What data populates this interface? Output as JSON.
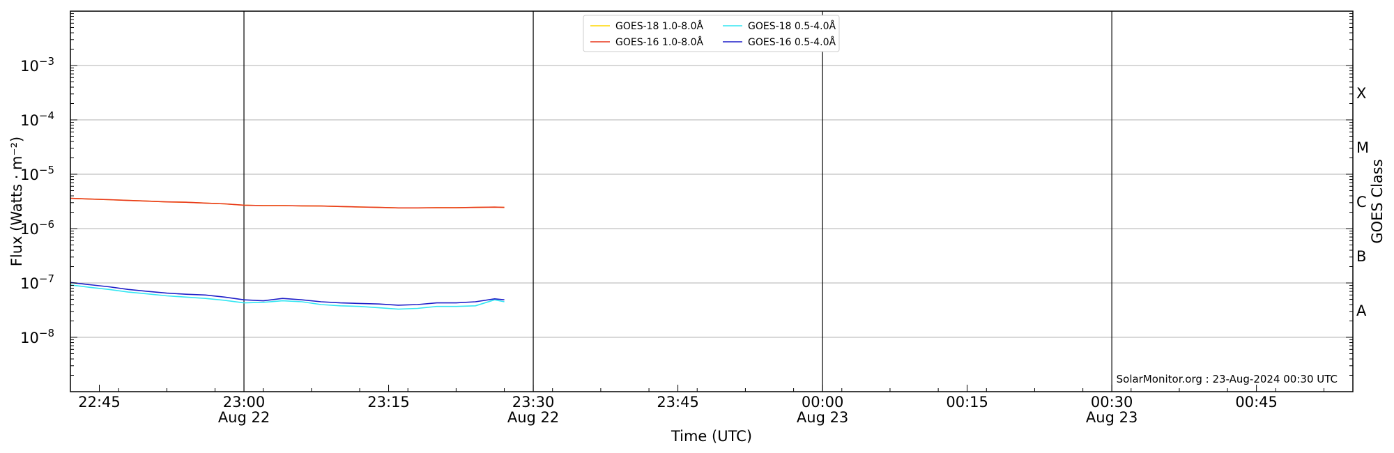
{
  "chart_data": {
    "type": "line",
    "xlabel": "Time (UTC)",
    "ylabel": "Flux (Watts · m⁻²)",
    "y2label": "GOES Class",
    "y_scale": "log",
    "ylim": [
      1e-09,
      0.01
    ],
    "xlim": [
      "2024-08-22 22:42",
      "2024-08-23 00:55"
    ],
    "grid": "horizontal at decades; vertical at half-hour marks",
    "legend": "top-center",
    "credit": "SolarMonitor.org : 23-Aug-2024 00:30 UTC",
    "x_ticks": [
      {
        "time": "2024-08-22 22:45",
        "label": "22:45",
        "sub": ""
      },
      {
        "time": "2024-08-22 23:00",
        "label": "23:00",
        "sub": "Aug 22"
      },
      {
        "time": "2024-08-22 23:15",
        "label": "23:15",
        "sub": ""
      },
      {
        "time": "2024-08-22 23:30",
        "label": "23:30",
        "sub": "Aug 22"
      },
      {
        "time": "2024-08-22 23:45",
        "label": "23:45",
        "sub": ""
      },
      {
        "time": "2024-08-23 00:00",
        "label": "00:00",
        "sub": "Aug 23"
      },
      {
        "time": "2024-08-23 00:15",
        "label": "00:15",
        "sub": ""
      },
      {
        "time": "2024-08-23 00:30",
        "label": "00:30",
        "sub": "Aug 23"
      },
      {
        "time": "2024-08-23 00:45",
        "label": "00:45",
        "sub": ""
      }
    ],
    "vlines": [
      "2024-08-22 23:00",
      "2024-08-22 23:30",
      "2024-08-23 00:00",
      "2024-08-23 00:30"
    ],
    "y_ticks": [
      {
        "value": 1e-08,
        "base": "10",
        "exp": "−8"
      },
      {
        "value": 1e-07,
        "base": "10",
        "exp": "−7"
      },
      {
        "value": 1e-06,
        "base": "10",
        "exp": "−6"
      },
      {
        "value": 1e-05,
        "base": "10",
        "exp": "−5"
      },
      {
        "value": 0.0001,
        "base": "10",
        "exp": "−4"
      },
      {
        "value": 0.001,
        "base": "10",
        "exp": "−3"
      }
    ],
    "goes_classes": [
      {
        "label": "A",
        "value": 3.16e-08
      },
      {
        "label": "B",
        "value": 3.16e-07
      },
      {
        "label": "C",
        "value": 3.16e-06
      },
      {
        "label": "M",
        "value": 3.16e-05
      },
      {
        "label": "X",
        "value": 0.000316
      }
    ],
    "x": [
      "22:42",
      "22:44",
      "22:46",
      "22:48",
      "22:50",
      "22:52",
      "22:54",
      "22:56",
      "22:58",
      "23:00",
      "23:02",
      "23:04",
      "23:06",
      "23:08",
      "23:10",
      "23:12",
      "23:14",
      "23:16",
      "23:18",
      "23:20",
      "23:22",
      "23:24",
      "23:26",
      "23:27"
    ],
    "series": [
      {
        "name": "GOES-18 1.0-8.0Å",
        "color": "#ffd700",
        "values": [
          3.6e-06,
          3.5e-06,
          3.4e-06,
          3.3e-06,
          3.2e-06,
          3.1e-06,
          3.05e-06,
          2.95e-06,
          2.85e-06,
          2.7e-06,
          2.65e-06,
          2.65e-06,
          2.62e-06,
          2.6e-06,
          2.55e-06,
          2.5e-06,
          2.45e-06,
          2.4e-06,
          2.4e-06,
          2.42e-06,
          2.42e-06,
          2.45e-06,
          2.48e-06,
          2.45e-06
        ]
      },
      {
        "name": "GOES-16 1.0-8.0Å",
        "color": "#e8361c",
        "values": [
          3.6e-06,
          3.5e-06,
          3.4e-06,
          3.3e-06,
          3.2e-06,
          3.1e-06,
          3.05e-06,
          2.95e-06,
          2.85e-06,
          2.7e-06,
          2.65e-06,
          2.65e-06,
          2.62e-06,
          2.6e-06,
          2.55e-06,
          2.5e-06,
          2.45e-06,
          2.4e-06,
          2.4e-06,
          2.42e-06,
          2.42e-06,
          2.45e-06,
          2.48e-06,
          2.45e-06
        ]
      },
      {
        "name": "GOES-18 0.5-4.0Å",
        "color": "#33e6f2",
        "values": [
          9.2e-08,
          8.3e-08,
          7.6e-08,
          6.8e-08,
          6.3e-08,
          5.8e-08,
          5.5e-08,
          5.2e-08,
          4.8e-08,
          4.3e-08,
          4.4e-08,
          4.7e-08,
          4.5e-08,
          4e-08,
          3.8e-08,
          3.7e-08,
          3.5e-08,
          3.3e-08,
          3.4e-08,
          3.7e-08,
          3.7e-08,
          3.8e-08,
          4.9e-08,
          4.5e-08
        ]
      },
      {
        "name": "GOES-16 0.5-4.0Å",
        "color": "#1e1ec8",
        "values": [
          1.02e-07,
          9.3e-08,
          8.5e-08,
          7.6e-08,
          7e-08,
          6.5e-08,
          6.2e-08,
          6e-08,
          5.5e-08,
          4.9e-08,
          4.7e-08,
          5.2e-08,
          4.9e-08,
          4.5e-08,
          4.3e-08,
          4.2e-08,
          4.1e-08,
          3.9e-08,
          4e-08,
          4.3e-08,
          4.3e-08,
          4.5e-08,
          5.1e-08,
          4.9e-08
        ]
      }
    ]
  }
}
